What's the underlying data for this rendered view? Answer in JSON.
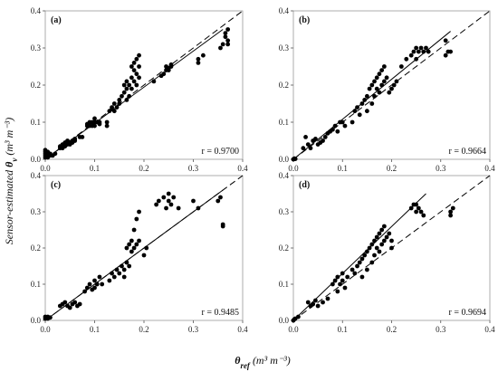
{
  "figure": {
    "ylabel": "Sensor-estimated θv (m³ m⁻³)",
    "xlabel": "θref (m³ m⁻³)",
    "ylabel_parts": {
      "prefix": "Sensor-estimated ",
      "symbol": "θ",
      "sub": "v",
      "unit": " (m³ m⁻³)"
    },
    "xlabel_parts": {
      "symbol": "θ",
      "sub": "ref",
      "unit": " (m³ m⁻³)"
    },
    "point_color": "#000000",
    "line_color": "#000000"
  },
  "chart_data": [
    {
      "type": "scatter",
      "panel": "(a)",
      "r_label": "r = 0.9700",
      "xlim": [
        0,
        0.4
      ],
      "ylim": [
        0,
        0.4
      ],
      "xticks": [
        "0.0",
        "0.1",
        "0.2",
        "0.3",
        "0.4"
      ],
      "yticks": [
        "0.0",
        "0.1",
        "0.2",
        "0.3",
        "0.4"
      ],
      "fit_line": {
        "x": [
          0,
          0.36
        ],
        "y": [
          0.0,
          0.35
        ]
      },
      "one_to_one_line": {
        "x": [
          0,
          0.4
        ],
        "y": [
          0,
          0.4
        ]
      },
      "points": [
        [
          0,
          0.005
        ],
        [
          0,
          0.01
        ],
        [
          0,
          0.015
        ],
        [
          0,
          0.02
        ],
        [
          0,
          0.025
        ],
        [
          0.005,
          0.005
        ],
        [
          0.005,
          0.01
        ],
        [
          0.005,
          0.02
        ],
        [
          0.01,
          0.01
        ],
        [
          0.01,
          0.015
        ],
        [
          0.015,
          0.01
        ],
        [
          0.02,
          0.015
        ],
        [
          0.03,
          0.03
        ],
        [
          0.03,
          0.035
        ],
        [
          0.035,
          0.03
        ],
        [
          0.035,
          0.04
        ],
        [
          0.04,
          0.035
        ],
        [
          0.04,
          0.045
        ],
        [
          0.045,
          0.04
        ],
        [
          0.045,
          0.05
        ],
        [
          0.05,
          0.04
        ],
        [
          0.05,
          0.045
        ],
        [
          0.055,
          0.045
        ],
        [
          0.055,
          0.05
        ],
        [
          0.06,
          0.05
        ],
        [
          0.06,
          0.055
        ],
        [
          0.07,
          0.06
        ],
        [
          0.075,
          0.06
        ],
        [
          0.085,
          0.09
        ],
        [
          0.085,
          0.095
        ],
        [
          0.09,
          0.09
        ],
        [
          0.09,
          0.1
        ],
        [
          0.095,
          0.09
        ],
        [
          0.095,
          0.1
        ],
        [
          0.1,
          0.09
        ],
        [
          0.1,
          0.1
        ],
        [
          0.1,
          0.11
        ],
        [
          0.105,
          0.1
        ],
        [
          0.11,
          0.095
        ],
        [
          0.11,
          0.1
        ],
        [
          0.125,
          0.09
        ],
        [
          0.125,
          0.1
        ],
        [
          0.13,
          0.13
        ],
        [
          0.135,
          0.135
        ],
        [
          0.135,
          0.14
        ],
        [
          0.14,
          0.13
        ],
        [
          0.14,
          0.15
        ],
        [
          0.145,
          0.14
        ],
        [
          0.15,
          0.15
        ],
        [
          0.15,
          0.16
        ],
        [
          0.155,
          0.17
        ],
        [
          0.16,
          0.18
        ],
        [
          0.16,
          0.2
        ],
        [
          0.165,
          0.16
        ],
        [
          0.165,
          0.19
        ],
        [
          0.165,
          0.21
        ],
        [
          0.17,
          0.17
        ],
        [
          0.17,
          0.2
        ],
        [
          0.175,
          0.19
        ],
        [
          0.175,
          0.22
        ],
        [
          0.175,
          0.25
        ],
        [
          0.18,
          0.21
        ],
        [
          0.18,
          0.24
        ],
        [
          0.18,
          0.26
        ],
        [
          0.185,
          0.2
        ],
        [
          0.185,
          0.23
        ],
        [
          0.185,
          0.27
        ],
        [
          0.19,
          0.22
        ],
        [
          0.19,
          0.25
        ],
        [
          0.19,
          0.28
        ],
        [
          0.22,
          0.21
        ],
        [
          0.235,
          0.225
        ],
        [
          0.24,
          0.23
        ],
        [
          0.245,
          0.24
        ],
        [
          0.245,
          0.25
        ],
        [
          0.25,
          0.24
        ],
        [
          0.25,
          0.245
        ],
        [
          0.255,
          0.25
        ],
        [
          0.255,
          0.255
        ],
        [
          0.31,
          0.26
        ],
        [
          0.31,
          0.27
        ],
        [
          0.32,
          0.28
        ],
        [
          0.355,
          0.3
        ],
        [
          0.36,
          0.31
        ],
        [
          0.365,
          0.33
        ],
        [
          0.365,
          0.34
        ],
        [
          0.37,
          0.35
        ],
        [
          0.37,
          0.32
        ],
        [
          0.37,
          0.31
        ]
      ]
    },
    {
      "type": "scatter",
      "panel": "(b)",
      "r_label": "r = 0.9664",
      "xlim": [
        0,
        0.4
      ],
      "ylim": [
        0,
        0.4
      ],
      "xticks": [
        "0.0",
        "0.1",
        "0.2",
        "0.3",
        "0.4"
      ],
      "yticks": [
        "0.0",
        "0.1",
        "0.2",
        "0.3",
        "0.4"
      ],
      "fit_line": {
        "x": [
          0,
          0.32
        ],
        "y": [
          0.0,
          0.345
        ]
      },
      "one_to_one_line": {
        "x": [
          0,
          0.4
        ],
        "y": [
          0,
          0.4
        ]
      },
      "points": [
        [
          0,
          0.0
        ],
        [
          0.002,
          0.002
        ],
        [
          0.004,
          0.001
        ],
        [
          0.02,
          0.03
        ],
        [
          0.025,
          0.06
        ],
        [
          0.03,
          0.04
        ],
        [
          0.035,
          0.03
        ],
        [
          0.04,
          0.05
        ],
        [
          0.045,
          0.055
        ],
        [
          0.05,
          0.04
        ],
        [
          0.055,
          0.045
        ],
        [
          0.06,
          0.05
        ],
        [
          0.065,
          0.06
        ],
        [
          0.07,
          0.07
        ],
        [
          0.075,
          0.075
        ],
        [
          0.08,
          0.08
        ],
        [
          0.085,
          0.09
        ],
        [
          0.09,
          0.075
        ],
        [
          0.095,
          0.1
        ],
        [
          0.1,
          0.1
        ],
        [
          0.105,
          0.09
        ],
        [
          0.12,
          0.1
        ],
        [
          0.125,
          0.13
        ],
        [
          0.13,
          0.14
        ],
        [
          0.135,
          0.12
        ],
        [
          0.14,
          0.15
        ],
        [
          0.145,
          0.16
        ],
        [
          0.15,
          0.13
        ],
        [
          0.15,
          0.17
        ],
        [
          0.155,
          0.19
        ],
        [
          0.16,
          0.2
        ],
        [
          0.16,
          0.15
        ],
        [
          0.165,
          0.21
        ],
        [
          0.165,
          0.17
        ],
        [
          0.17,
          0.22
        ],
        [
          0.17,
          0.19
        ],
        [
          0.175,
          0.23
        ],
        [
          0.175,
          0.18
        ],
        [
          0.18,
          0.24
        ],
        [
          0.18,
          0.2
        ],
        [
          0.185,
          0.25
        ],
        [
          0.185,
          0.21
        ],
        [
          0.19,
          0.22
        ],
        [
          0.195,
          0.18
        ],
        [
          0.2,
          0.19
        ],
        [
          0.205,
          0.2
        ],
        [
          0.21,
          0.21
        ],
        [
          0.22,
          0.25
        ],
        [
          0.23,
          0.27
        ],
        [
          0.24,
          0.28
        ],
        [
          0.245,
          0.29
        ],
        [
          0.25,
          0.3
        ],
        [
          0.25,
          0.27
        ],
        [
          0.255,
          0.29
        ],
        [
          0.26,
          0.3
        ],
        [
          0.265,
          0.29
        ],
        [
          0.27,
          0.3
        ],
        [
          0.275,
          0.29
        ],
        [
          0.31,
          0.28
        ],
        [
          0.31,
          0.32
        ],
        [
          0.315,
          0.29
        ],
        [
          0.32,
          0.29
        ]
      ]
    },
    {
      "type": "scatter",
      "panel": "(c)",
      "r_label": "r = 0.9485",
      "xlim": [
        0,
        0.4
      ],
      "ylim": [
        0,
        0.4
      ],
      "xticks": [
        "0.0",
        "0.1",
        "0.2",
        "0.3",
        "0.4"
      ],
      "yticks": [
        "0.0",
        "0.1",
        "0.2",
        "0.3",
        "0.4"
      ],
      "fit_line": {
        "x": [
          0,
          0.36
        ],
        "y": [
          0.0,
          0.36
        ]
      },
      "one_to_one_line": {
        "x": [
          0,
          0.4
        ],
        "y": [
          0,
          0.4
        ]
      },
      "points": [
        [
          0,
          0.005
        ],
        [
          0,
          0.01
        ],
        [
          0.005,
          0.005
        ],
        [
          0.005,
          0.01
        ],
        [
          0.01,
          0.008
        ],
        [
          0.03,
          0.04
        ],
        [
          0.035,
          0.045
        ],
        [
          0.04,
          0.05
        ],
        [
          0.045,
          0.04
        ],
        [
          0.05,
          0.035
        ],
        [
          0.055,
          0.045
        ],
        [
          0.06,
          0.05
        ],
        [
          0.065,
          0.04
        ],
        [
          0.07,
          0.045
        ],
        [
          0.08,
          0.08
        ],
        [
          0.085,
          0.09
        ],
        [
          0.09,
          0.1
        ],
        [
          0.095,
          0.085
        ],
        [
          0.1,
          0.09
        ],
        [
          0.1,
          0.11
        ],
        [
          0.105,
          0.1
        ],
        [
          0.11,
          0.12
        ],
        [
          0.115,
          0.1
        ],
        [
          0.13,
          0.11
        ],
        [
          0.135,
          0.13
        ],
        [
          0.14,
          0.12
        ],
        [
          0.145,
          0.14
        ],
        [
          0.15,
          0.13
        ],
        [
          0.155,
          0.15
        ],
        [
          0.16,
          0.14
        ],
        [
          0.16,
          0.12
        ],
        [
          0.165,
          0.16
        ],
        [
          0.165,
          0.2
        ],
        [
          0.17,
          0.21
        ],
        [
          0.17,
          0.15
        ],
        [
          0.175,
          0.22
        ],
        [
          0.175,
          0.19
        ],
        [
          0.18,
          0.2
        ],
        [
          0.18,
          0.25
        ],
        [
          0.185,
          0.28
        ],
        [
          0.185,
          0.21
        ],
        [
          0.19,
          0.3
        ],
        [
          0.19,
          0.22
        ],
        [
          0.2,
          0.18
        ],
        [
          0.205,
          0.2
        ],
        [
          0.225,
          0.32
        ],
        [
          0.23,
          0.33
        ],
        [
          0.24,
          0.34
        ],
        [
          0.245,
          0.31
        ],
        [
          0.25,
          0.33
        ],
        [
          0.25,
          0.35
        ],
        [
          0.255,
          0.32
        ],
        [
          0.26,
          0.34
        ],
        [
          0.27,
          0.31
        ],
        [
          0.3,
          0.33
        ],
        [
          0.31,
          0.31
        ],
        [
          0.35,
          0.33
        ],
        [
          0.355,
          0.34
        ],
        [
          0.36,
          0.26
        ],
        [
          0.36,
          0.265
        ]
      ]
    },
    {
      "type": "scatter",
      "panel": "(d)",
      "r_label": "r = 0.9694",
      "xlim": [
        0,
        0.4
      ],
      "ylim": [
        0,
        0.4
      ],
      "xticks": [
        "0.0",
        "0.1",
        "0.2",
        "0.3",
        "0.4"
      ],
      "yticks": [
        "0.0",
        "0.1",
        "0.2",
        "0.3",
        "0.4"
      ],
      "fit_line": {
        "x": [
          0,
          0.27
        ],
        "y": [
          0.0,
          0.35
        ]
      },
      "one_to_one_line": {
        "x": [
          0,
          0.4
        ],
        "y": [
          0,
          0.4
        ]
      },
      "points": [
        [
          0,
          0.0
        ],
        [
          0.002,
          0.003
        ],
        [
          0.004,
          0.005
        ],
        [
          0.01,
          0.01
        ],
        [
          0.03,
          0.05
        ],
        [
          0.035,
          0.04
        ],
        [
          0.04,
          0.045
        ],
        [
          0.045,
          0.055
        ],
        [
          0.05,
          0.04
        ],
        [
          0.06,
          0.05
        ],
        [
          0.07,
          0.06
        ],
        [
          0.08,
          0.1
        ],
        [
          0.085,
          0.11
        ],
        [
          0.09,
          0.12
        ],
        [
          0.09,
          0.08
        ],
        [
          0.095,
          0.1
        ],
        [
          0.1,
          0.11
        ],
        [
          0.1,
          0.13
        ],
        [
          0.105,
          0.09
        ],
        [
          0.11,
          0.12
        ],
        [
          0.12,
          0.14
        ],
        [
          0.125,
          0.13
        ],
        [
          0.13,
          0.15
        ],
        [
          0.135,
          0.16
        ],
        [
          0.14,
          0.17
        ],
        [
          0.14,
          0.12
        ],
        [
          0.145,
          0.18
        ],
        [
          0.15,
          0.19
        ],
        [
          0.15,
          0.14
        ],
        [
          0.155,
          0.2
        ],
        [
          0.16,
          0.21
        ],
        [
          0.16,
          0.16
        ],
        [
          0.165,
          0.22
        ],
        [
          0.165,
          0.18
        ],
        [
          0.17,
          0.23
        ],
        [
          0.17,
          0.2
        ],
        [
          0.175,
          0.24
        ],
        [
          0.175,
          0.19
        ],
        [
          0.18,
          0.25
        ],
        [
          0.18,
          0.21
        ],
        [
          0.185,
          0.26
        ],
        [
          0.185,
          0.22
        ],
        [
          0.19,
          0.23
        ],
        [
          0.195,
          0.24
        ],
        [
          0.2,
          0.2
        ],
        [
          0.2,
          0.22
        ],
        [
          0.24,
          0.31
        ],
        [
          0.245,
          0.32
        ],
        [
          0.25,
          0.3
        ],
        [
          0.25,
          0.32
        ],
        [
          0.255,
          0.31
        ],
        [
          0.26,
          0.3
        ],
        [
          0.265,
          0.29
        ],
        [
          0.32,
          0.29
        ],
        [
          0.32,
          0.3
        ],
        [
          0.325,
          0.31
        ]
      ]
    }
  ]
}
